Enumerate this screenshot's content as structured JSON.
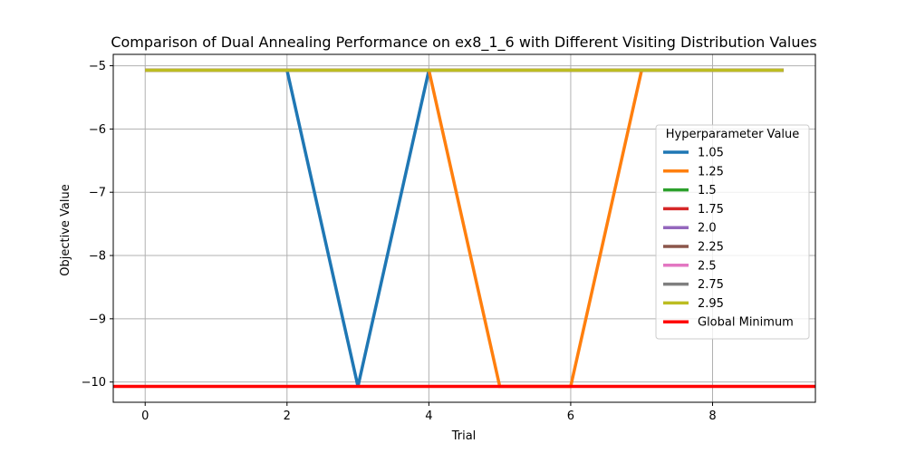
{
  "chart_data": {
    "type": "line",
    "title": "Comparison of Dual Annealing Performance on ex8_1_6 with Different Visiting Distribution Values",
    "xlabel": "Trial",
    "ylabel": "Objective Value",
    "xlim": [
      -0.45,
      9.45
    ],
    "ylim": [
      -10.32,
      -4.82
    ],
    "xticks": [
      0,
      2,
      4,
      6,
      8
    ],
    "yticks": [
      -5,
      -6,
      -7,
      -8,
      -9,
      -10
    ],
    "xtick_labels": [
      "0",
      "2",
      "4",
      "6",
      "8"
    ],
    "ytick_labels": [
      "−5",
      "−6",
      "−7",
      "−8",
      "−9",
      "−10"
    ],
    "grid": true,
    "legend": {
      "title": "Hyperparameter Value",
      "placement": "center-right"
    },
    "x": [
      0,
      1,
      2,
      3,
      4,
      5,
      6,
      7,
      8,
      9
    ],
    "series": [
      {
        "name": "1.05",
        "color": "#1f77b4",
        "values": [
          -5.07,
          -5.07,
          -5.07,
          -10.07,
          -5.07,
          -5.07,
          -5.07,
          -5.07,
          -5.07,
          -5.07
        ]
      },
      {
        "name": "1.25",
        "color": "#ff7f0e",
        "values": [
          -5.07,
          -5.07,
          -5.07,
          -5.07,
          -5.07,
          -10.07,
          -10.07,
          -5.07,
          -5.07,
          -5.07
        ]
      },
      {
        "name": "1.5",
        "color": "#2ca02c",
        "values": [
          -5.07,
          -5.07,
          -5.07,
          -5.07,
          -5.07,
          -5.07,
          -5.07,
          -5.07,
          -5.07,
          -5.07
        ]
      },
      {
        "name": "1.75",
        "color": "#d62728",
        "values": [
          -5.07,
          -5.07,
          -5.07,
          -5.07,
          -5.07,
          -5.07,
          -5.07,
          -5.07,
          -5.07,
          -5.07
        ]
      },
      {
        "name": "2.0",
        "color": "#9467bd",
        "values": [
          -5.07,
          -5.07,
          -5.07,
          -5.07,
          -5.07,
          -5.07,
          -5.07,
          -5.07,
          -5.07,
          -5.07
        ]
      },
      {
        "name": "2.25",
        "color": "#8c564b",
        "values": [
          -5.07,
          -5.07,
          -5.07,
          -5.07,
          -5.07,
          -5.07,
          -5.07,
          -5.07,
          -5.07,
          -5.07
        ]
      },
      {
        "name": "2.5",
        "color": "#e377c2",
        "values": [
          -5.07,
          -5.07,
          -5.07,
          -5.07,
          -5.07,
          -5.07,
          -5.07,
          -5.07,
          -5.07,
          -5.07
        ]
      },
      {
        "name": "2.75",
        "color": "#7f7f7f",
        "values": [
          -5.07,
          -5.07,
          -5.07,
          -5.07,
          -5.07,
          -5.07,
          -5.07,
          -5.07,
          -5.07,
          -5.07
        ]
      },
      {
        "name": "2.95",
        "color": "#bcbd22",
        "values": [
          -5.07,
          -5.07,
          -5.07,
          -5.07,
          -5.07,
          -5.07,
          -5.07,
          -5.07,
          -5.07,
          -5.07
        ]
      }
    ],
    "global_minimum": {
      "name": "Global Minimum",
      "color": "#ff0000",
      "value": -10.07
    }
  }
}
